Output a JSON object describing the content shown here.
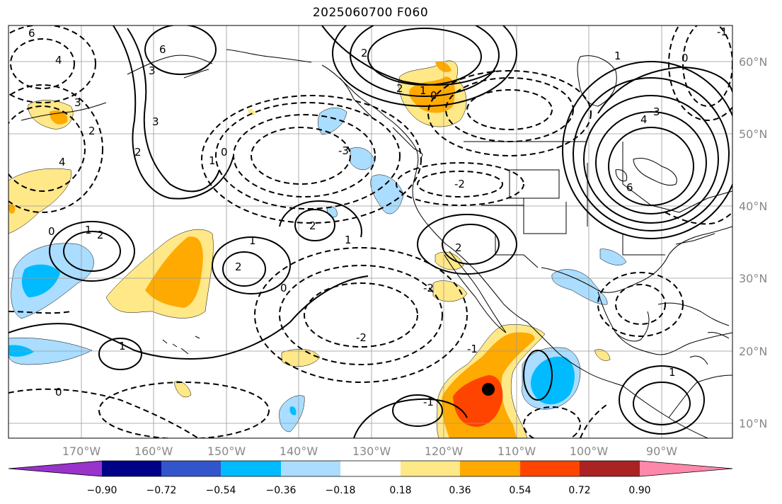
{
  "title": "2025060700 F060",
  "latitude_labels": [
    "60°N",
    "50°N",
    "40°N",
    "30°N",
    "20°N",
    "10°N"
  ],
  "longitude_labels": [
    "170°W",
    "160°W",
    "150°W",
    "140°W",
    "130°W",
    "120°W",
    "110°W",
    "100°W",
    "90°W"
  ],
  "colorbar": {
    "tick_labels": [
      "−0.90",
      "−0.72",
      "−0.54",
      "−0.36",
      "−0.18",
      "0.18",
      "0.36",
      "0.54",
      "0.72",
      "0.90"
    ],
    "colors": [
      "#9933cc",
      "#000088",
      "#3355cc",
      "#00bbff",
      "#aaddff",
      "#ffffff",
      "#ffe888",
      "#ffaa00",
      "#ff4400",
      "#aa2222",
      "#ff88aa"
    ]
  },
  "contour_labels": [
    "6",
    "4",
    "3",
    "2",
    "1",
    "0",
    "2",
    "3",
    "4",
    "6",
    "3",
    "2",
    "1",
    "0",
    "-1",
    "-2",
    "-3",
    "-2",
    "2",
    "1",
    "0",
    "4",
    "6",
    "3",
    "2",
    "1",
    "0",
    "-1",
    "2",
    "1",
    "2",
    "1",
    "0",
    "-2",
    "1",
    "-1",
    "0",
    "1",
    "2"
  ],
  "marker": "black-dot"
}
